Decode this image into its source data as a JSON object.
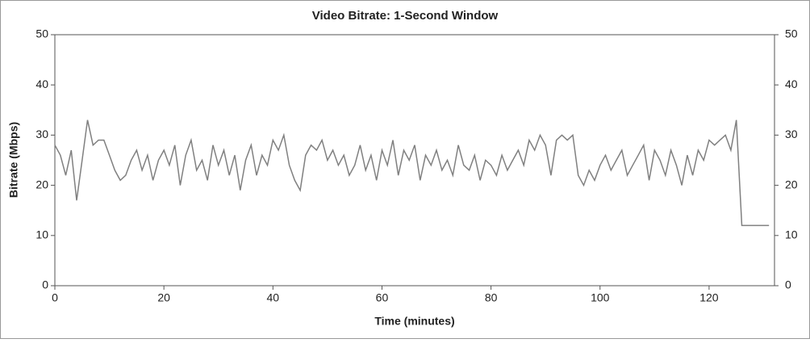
{
  "chart_data": {
    "type": "line",
    "title": "Video Bitrate: 1-Second Window",
    "x_label": "Time (minutes)",
    "y_label": "Bitrate (Mbps)",
    "xlim": [
      0,
      132
    ],
    "xticks": [
      0,
      20,
      40,
      60,
      80,
      100,
      120
    ],
    "ylim": [
      0,
      50
    ],
    "yticks": [
      0,
      10,
      20,
      30,
      40,
      50
    ],
    "y2lim": [
      0,
      50
    ],
    "y2ticks": [
      0,
      10,
      20,
      30,
      40,
      50
    ],
    "x": [
      0,
      1,
      2,
      3,
      4,
      5,
      6,
      7,
      8,
      9,
      10,
      11,
      12,
      13,
      14,
      15,
      16,
      17,
      18,
      19,
      20,
      21,
      22,
      23,
      24,
      25,
      26,
      27,
      28,
      29,
      30,
      31,
      32,
      33,
      34,
      35,
      36,
      37,
      38,
      39,
      40,
      41,
      42,
      43,
      44,
      45,
      46,
      47,
      48,
      49,
      50,
      51,
      52,
      53,
      54,
      55,
      56,
      57,
      58,
      59,
      60,
      61,
      62,
      63,
      64,
      65,
      66,
      67,
      68,
      69,
      70,
      71,
      72,
      73,
      74,
      75,
      76,
      77,
      78,
      79,
      80,
      81,
      82,
      83,
      84,
      85,
      86,
      87,
      88,
      89,
      90,
      91,
      92,
      93,
      94,
      95,
      96,
      97,
      98,
      99,
      100,
      101,
      102,
      103,
      104,
      105,
      106,
      107,
      108,
      109,
      110,
      111,
      112,
      113,
      114,
      115,
      116,
      117,
      118,
      119,
      120,
      121,
      122,
      123,
      124,
      125,
      126,
      127,
      128,
      129,
      130,
      131
    ],
    "series": [
      {
        "color": "#808080",
        "values": [
          28,
          26,
          22,
          27,
          17,
          25,
          33,
          28,
          29,
          29,
          26,
          23,
          21,
          22,
          25,
          27,
          23,
          26,
          21,
          25,
          27,
          24,
          28,
          20,
          26,
          29,
          23,
          25,
          21,
          28,
          24,
          27,
          22,
          26,
          19,
          25,
          28,
          22,
          26,
          24,
          29,
          27,
          30,
          24,
          21,
          19,
          26,
          28,
          27,
          29,
          25,
          27,
          24,
          26,
          22,
          24,
          28,
          23,
          26,
          21,
          27,
          24,
          29,
          22,
          27,
          25,
          28,
          21,
          26,
          24,
          27,
          23,
          25,
          22,
          28,
          24,
          23,
          26,
          21,
          25,
          24,
          22,
          26,
          23,
          25,
          27,
          24,
          29,
          27,
          30,
          28,
          22,
          29,
          30,
          29,
          30,
          22,
          20,
          23,
          21,
          24,
          26,
          23,
          25,
          27,
          22,
          24,
          26,
          28,
          21,
          27,
          25,
          22,
          27,
          24,
          20,
          26,
          22,
          27,
          25,
          29,
          28,
          29,
          30,
          27,
          33,
          12,
          12,
          12,
          12,
          12,
          12
        ]
      }
    ]
  }
}
